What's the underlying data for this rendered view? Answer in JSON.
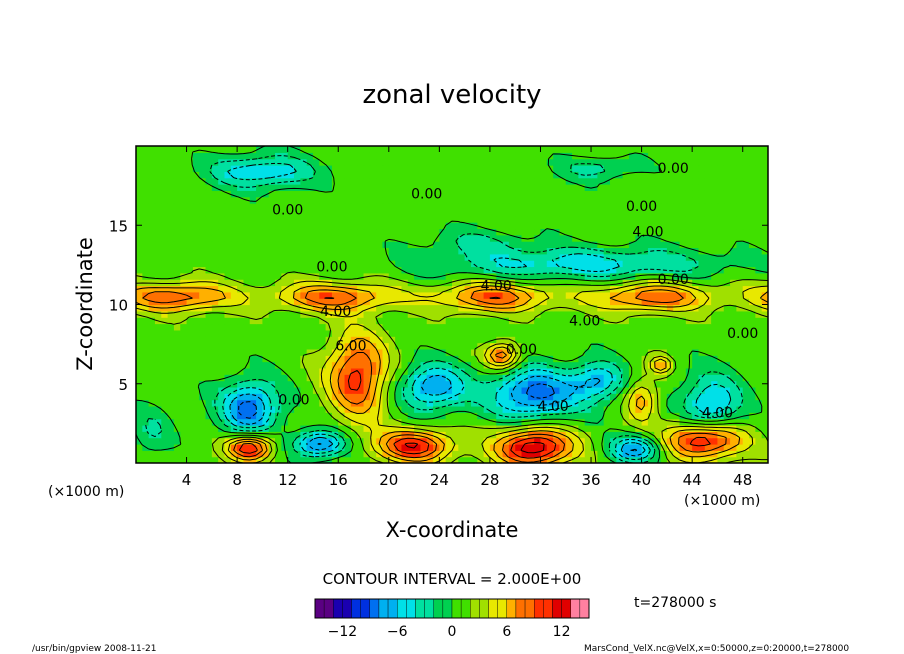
{
  "chart_data": {
    "type": "heatmap",
    "title": "zonal velocity",
    "xlabel": "X-coordinate",
    "ylabel": "Z-coordinate",
    "x_unit_left": "(×1000 m)",
    "x_unit_right": "(×1000 m)",
    "x_ticks": [
      "4",
      "8",
      "12",
      "16",
      "20",
      "24",
      "28",
      "32",
      "36",
      "40",
      "44",
      "48"
    ],
    "x_range": [
      0,
      50
    ],
    "y_ticks": [
      "5",
      "10",
      "15"
    ],
    "y_range": [
      0,
      20
    ],
    "contour_labels": [
      {
        "text": "0.00",
        "x": 23,
        "y": 17.0
      },
      {
        "text": "0.00",
        "x": 12,
        "y": 16.0
      },
      {
        "text": "0.00",
        "x": 42.5,
        "y": 18.6
      },
      {
        "text": "0.00",
        "x": 40,
        "y": 16.2
      },
      {
        "text": "4.00",
        "x": 40.5,
        "y": 14.6
      },
      {
        "text": "0.00",
        "x": 15.5,
        "y": 12.4
      },
      {
        "text": "4.00",
        "x": 28.5,
        "y": 11.2
      },
      {
        "text": "0.00",
        "x": 42.5,
        "y": 11.6
      },
      {
        "text": "4.00",
        "x": 15.8,
        "y": 9.6
      },
      {
        "text": "4.00",
        "x": 35.5,
        "y": 9.0
      },
      {
        "text": "0.00",
        "x": 48.0,
        "y": 8.2
      },
      {
        "text": "6.00",
        "x": 17.0,
        "y": 7.4
      },
      {
        "text": "0.00",
        "x": 30.5,
        "y": 7.2
      },
      {
        "text": "0.00",
        "x": 12.5,
        "y": 4.0
      },
      {
        "text": "4.00",
        "x": 33.0,
        "y": 3.6
      },
      {
        "text": "4.00",
        "x": 46.0,
        "y": 3.2
      }
    ],
    "contour_interval_label": "CONTOUR INTERVAL = 2.000E+00",
    "colorbar": {
      "min": -15,
      "max": 15,
      "ticks": [
        "−12",
        "−6",
        "0",
        "6",
        "12"
      ]
    },
    "time_label": "t=278000 s",
    "footer_left": "/usr/bin/gpview   2008-11-21",
    "footer_right": "MarsCond_VelX.nc@VelX,x=0:50000,z=0:20000,t=278000",
    "grid": false,
    "colormap": [
      "#5a0082",
      "#1a00b0",
      "#0030e0",
      "#0070f0",
      "#00b0f0",
      "#00e0e8",
      "#00e0a0",
      "#00d050",
      "#40e000",
      "#a0e000",
      "#e8e800",
      "#ffb000",
      "#ff7000",
      "#ff3000",
      "#e00000",
      "#ff80a0"
    ]
  }
}
